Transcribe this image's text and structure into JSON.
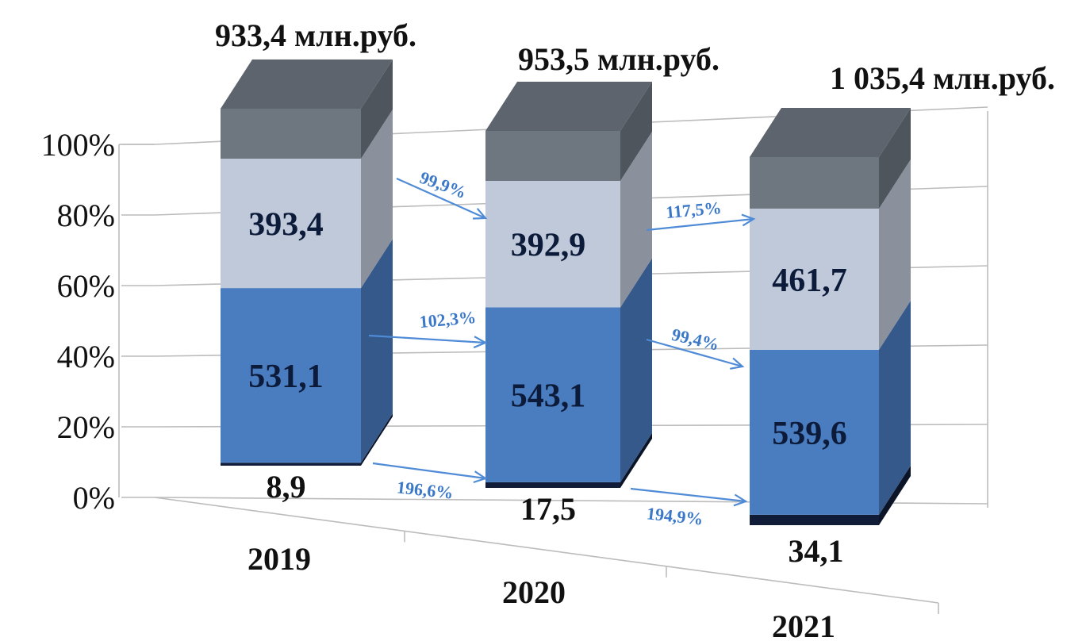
{
  "chart_data": {
    "type": "bar",
    "stacked": true,
    "normalized": true,
    "categories": [
      "2019",
      "2020",
      "2021"
    ],
    "totals": [
      "933,4 млн.руб.",
      "953,5 млн.руб.",
      "1 035,4 млн.руб."
    ],
    "series": [
      {
        "values": [
          8.9,
          17.5,
          34.1
        ],
        "labels": [
          "8,9",
          "17,5",
          "34,1"
        ],
        "color": "#101c38"
      },
      {
        "values": [
          531.1,
          543.1,
          539.6
        ],
        "labels": [
          "531,1",
          "543,1",
          "539,6"
        ],
        "color": "#4a7cc0"
      },
      {
        "values": [
          393.4,
          392.9,
          461.7
        ],
        "labels": [
          "393,4",
          "392,9",
          "461,7"
        ],
        "color": "#bfc9da"
      }
    ],
    "remainder_color": "#6e7680",
    "growth_labels": [
      {
        "series": 0,
        "from": 0,
        "text": "196,6%"
      },
      {
        "series": 0,
        "from": 1,
        "text": "194,9%"
      },
      {
        "series": 1,
        "from": 0,
        "text": "102,3%"
      },
      {
        "series": 1,
        "from": 1,
        "text": "99,4%"
      },
      {
        "series": 2,
        "from": 0,
        "text": "99,9%"
      },
      {
        "series": 2,
        "from": 1,
        "text": "117,5%"
      }
    ],
    "y_ticks": [
      "0%",
      "20%",
      "40%",
      "60%",
      "80%",
      "100%"
    ],
    "ylim": [
      0,
      100
    ],
    "grid": true,
    "legend": "none"
  }
}
